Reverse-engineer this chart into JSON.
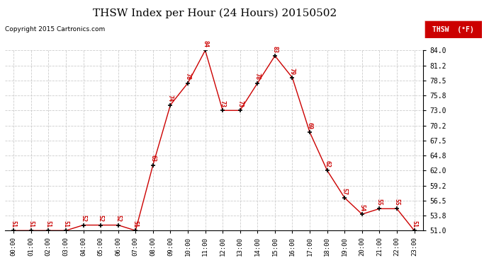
{
  "title": "THSW Index per Hour (24 Hours) 20150502",
  "copyright": "Copyright 2015 Cartronics.com",
  "legend_label": "THSW  (°F)",
  "hours": [
    0,
    1,
    2,
    3,
    4,
    5,
    6,
    7,
    8,
    9,
    10,
    11,
    12,
    13,
    14,
    15,
    16,
    17,
    18,
    19,
    20,
    21,
    22,
    23
  ],
  "values": [
    51,
    51,
    51,
    51,
    52,
    52,
    52,
    51,
    63,
    74,
    78,
    84,
    73,
    73,
    78,
    83,
    79,
    69,
    62,
    57,
    54,
    55,
    55,
    51
  ],
  "x_labels": [
    "00:00",
    "01:00",
    "02:00",
    "03:00",
    "04:00",
    "05:00",
    "06:00",
    "07:00",
    "08:00",
    "09:00",
    "10:00",
    "11:00",
    "12:00",
    "13:00",
    "14:00",
    "15:00",
    "16:00",
    "17:00",
    "18:00",
    "19:00",
    "20:00",
    "21:00",
    "22:00",
    "23:00"
  ],
  "y_ticks": [
    51.0,
    53.8,
    56.5,
    59.2,
    62.0,
    64.8,
    67.5,
    70.2,
    73.0,
    75.8,
    78.5,
    81.2,
    84.0
  ],
  "ylim": [
    51.0,
    84.0
  ],
  "line_color": "#cc0000",
  "marker_color": "#000000",
  "label_color": "#cc0000",
  "grid_color": "#cccccc",
  "bg_color": "#ffffff",
  "title_fontsize": 11,
  "copyright_fontsize": 6.5,
  "label_fontsize": 6,
  "legend_bg": "#cc0000",
  "legend_text_color": "#ffffff"
}
